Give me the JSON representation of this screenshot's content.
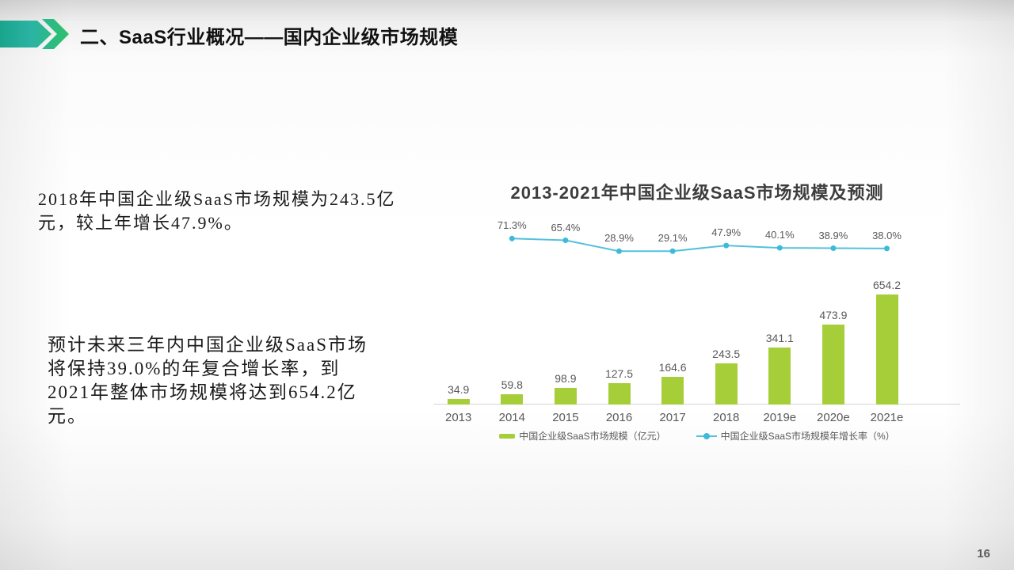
{
  "header": {
    "title": "二、SaaS行业概况——国内企业级市场规模"
  },
  "paragraphs": {
    "p1": "2018年中国企业级SaaS市场规模为243.5亿元，较上年增长47.9%。",
    "p2": "预计未来三年内中国企业级SaaS市场将保持39.0%的年复合增长率，到2021年整体市场规模将达到654.2亿元。"
  },
  "chart_data": {
    "type": "combo",
    "title": "2013-2021年中国企业级SaaS市场规模及预测",
    "categories": [
      "2013",
      "2014",
      "2015",
      "2016",
      "2017",
      "2018",
      "2019e",
      "2020e",
      "2021e"
    ],
    "series": [
      {
        "name": "中国企业级SaaS市场规模（亿元）",
        "type": "bar",
        "color": "#a6ce39",
        "values": [
          34.9,
          59.8,
          98.9,
          127.5,
          164.6,
          243.5,
          341.1,
          473.9,
          654.2
        ]
      },
      {
        "name": "中国企业级SaaS市场规模年增长率（%）",
        "type": "line",
        "color": "#54c0dd",
        "dot_color": "#3fb9da",
        "values": [
          null,
          71.3,
          65.4,
          28.9,
          29.1,
          47.9,
          40.1,
          38.9,
          38.0
        ]
      }
    ],
    "ylabel": "",
    "xlabel": "",
    "gridlines": false,
    "legend_position": "bottom"
  },
  "page": {
    "number": "16"
  },
  "colors": {
    "accent_teal": "#18a58c",
    "accent_green": "#2fc164",
    "bar_green": "#a6ce39",
    "line_cyan": "#54c0dd",
    "text_gray": "#595959"
  }
}
